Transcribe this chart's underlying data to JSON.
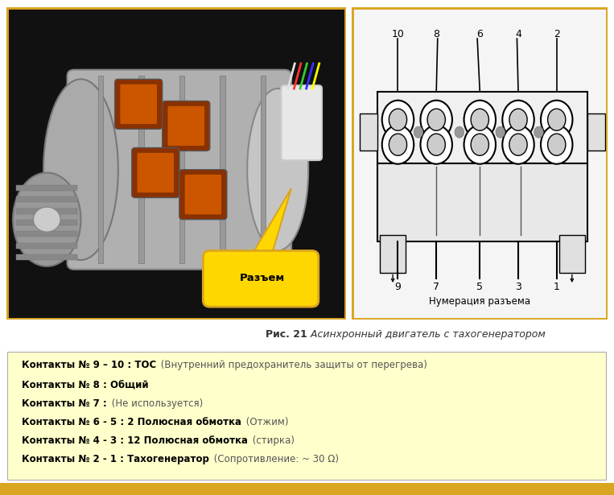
{
  "bg_color": "#ffffff",
  "top_border_color": "#DAA520",
  "caption_text_bold": "Рис. 21",
  "caption_text_italic": " Асинхронный двигатель с тахогенератором",
  "info_box_bg": "#FFFFCC",
  "info_box_border": "#aaaaaa",
  "lines": [
    {
      "bold": "Контакты № 9 – 10 : ТОС",
      "normal": " (Внутренний предохранитель защиты от перегрева)"
    },
    {
      "bold": "Контакты № 8 : Общий",
      "normal": ""
    },
    {
      "bold": "Контакты № 7 :",
      "normal": " (Не используется)"
    },
    {
      "bold": "Контакты № 6 - 5 : 2 Полюсная обмотка",
      "normal": " (Отжим)"
    },
    {
      "bold": "Контакты № 4 - 3 : 12 Полюсная обмотка",
      "normal": " (стирка)"
    },
    {
      "bold": "Контакты № 2 - 1 : Тахогенератор",
      "normal": " (Сопротивление: ~ 30 Ω)"
    }
  ],
  "razem_label": "Разъем",
  "numeraciya_label": "Нумерация разъема",
  "top_nums": [
    "10",
    "8",
    "6",
    "4",
    "2"
  ],
  "bot_nums": [
    "9",
    "7",
    "5",
    "3",
    "1"
  ],
  "bottom_bar_color": "#DAA520"
}
